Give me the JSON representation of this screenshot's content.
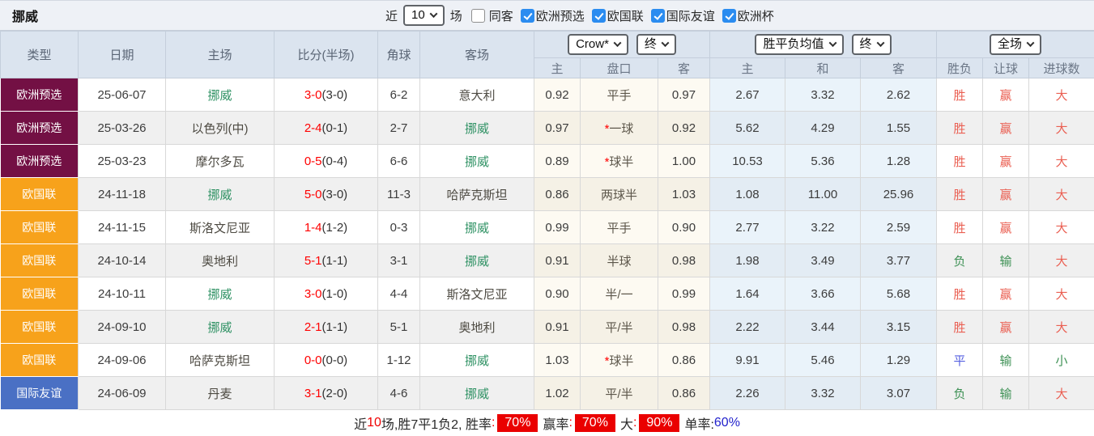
{
  "title": "挪威",
  "topbar": {
    "recent_label": "近",
    "recent_select": "10",
    "matches_label": "场",
    "checkboxes": [
      {
        "label": "同客",
        "checked": false
      },
      {
        "label": "欧洲预选",
        "checked": true
      },
      {
        "label": "欧国联",
        "checked": true
      },
      {
        "label": "国际友谊",
        "checked": true
      },
      {
        "label": "欧洲杯",
        "checked": true
      }
    ]
  },
  "header": {
    "static_cols": [
      "类型",
      "日期",
      "主场",
      "比分(半场)",
      "角球",
      "客场"
    ],
    "selects": {
      "odds_company": "Crow*",
      "odds_stage1": "终",
      "avg_type": "胜平负均值",
      "odds_stage2": "终",
      "scope": "全场"
    },
    "sub_cols": [
      "主",
      "盘口",
      "客",
      "主",
      "和",
      "客",
      "胜负",
      "让球",
      "进球数"
    ]
  },
  "colors": {
    "type_euro_qualifier": "#731044",
    "type_nations_league": "#F7A21B",
    "type_friendly": "#4A70C4",
    "score_red": "#FF0000",
    "team_green": "#2E9163",
    "outcome_red": "#EA5F52",
    "outcome_green": "#3E9155",
    "outcome_blue": "#5660E0",
    "rate_box_red": "#EA0000",
    "single_rate_blue": "#2222CC"
  },
  "rows": [
    {
      "type": "欧洲预选",
      "type_key": "euro_qualifier",
      "date": "25-06-07",
      "home": "挪威",
      "home_green": true,
      "score": "3-0",
      "half": "(3-0)",
      "corner": "6-2",
      "away": "意大利",
      "away_green": false,
      "h": "0.92",
      "star": false,
      "handicap": "平手",
      "a": "0.97",
      "avg_h": "2.67",
      "avg_d": "3.32",
      "avg_a": "2.62",
      "result": "胜",
      "result_c": "red",
      "cover": "赢",
      "cover_c": "red",
      "goals": "大",
      "goals_c": "red"
    },
    {
      "type": "欧洲预选",
      "type_key": "euro_qualifier",
      "date": "25-03-26",
      "home": "以色列(中)",
      "home_green": false,
      "score": "2-4",
      "half": "(0-1)",
      "corner": "2-7",
      "away": "挪威",
      "away_green": true,
      "h": "0.97",
      "star": true,
      "handicap": "一球",
      "a": "0.92",
      "avg_h": "5.62",
      "avg_d": "4.29",
      "avg_a": "1.55",
      "result": "胜",
      "result_c": "red",
      "cover": "赢",
      "cover_c": "red",
      "goals": "大",
      "goals_c": "red"
    },
    {
      "type": "欧洲预选",
      "type_key": "euro_qualifier",
      "date": "25-03-23",
      "home": "摩尔多瓦",
      "home_green": false,
      "score": "0-5",
      "half": "(0-4)",
      "corner": "6-6",
      "away": "挪威",
      "away_green": true,
      "h": "0.89",
      "star": true,
      "handicap": "球半",
      "a": "1.00",
      "avg_h": "10.53",
      "avg_d": "5.36",
      "avg_a": "1.28",
      "result": "胜",
      "result_c": "red",
      "cover": "赢",
      "cover_c": "red",
      "goals": "大",
      "goals_c": "red"
    },
    {
      "type": "欧国联",
      "type_key": "nations_league",
      "date": "24-11-18",
      "home": "挪威",
      "home_green": true,
      "score": "5-0",
      "half": "(3-0)",
      "corner": "11-3",
      "away": "哈萨克斯坦",
      "away_green": false,
      "h": "0.86",
      "star": false,
      "handicap": "两球半",
      "a": "1.03",
      "avg_h": "1.08",
      "avg_d": "11.00",
      "avg_a": "25.96",
      "result": "胜",
      "result_c": "red",
      "cover": "赢",
      "cover_c": "red",
      "goals": "大",
      "goals_c": "red"
    },
    {
      "type": "欧国联",
      "type_key": "nations_league",
      "date": "24-11-15",
      "home": "斯洛文尼亚",
      "home_green": false,
      "score": "1-4",
      "half": "(1-2)",
      "corner": "0-3",
      "away": "挪威",
      "away_green": true,
      "h": "0.99",
      "star": false,
      "handicap": "平手",
      "a": "0.90",
      "avg_h": "2.77",
      "avg_d": "3.22",
      "avg_a": "2.59",
      "result": "胜",
      "result_c": "red",
      "cover": "赢",
      "cover_c": "red",
      "goals": "大",
      "goals_c": "red"
    },
    {
      "type": "欧国联",
      "type_key": "nations_league",
      "date": "24-10-14",
      "home": "奥地利",
      "home_green": false,
      "score": "5-1",
      "half": "(1-1)",
      "corner": "3-1",
      "away": "挪威",
      "away_green": true,
      "h": "0.91",
      "star": false,
      "handicap": "半球",
      "a": "0.98",
      "avg_h": "1.98",
      "avg_d": "3.49",
      "avg_a": "3.77",
      "result": "负",
      "result_c": "green",
      "cover": "输",
      "cover_c": "green",
      "goals": "大",
      "goals_c": "red"
    },
    {
      "type": "欧国联",
      "type_key": "nations_league",
      "date": "24-10-11",
      "home": "挪威",
      "home_green": true,
      "score": "3-0",
      "half": "(1-0)",
      "corner": "4-4",
      "away": "斯洛文尼亚",
      "away_green": false,
      "h": "0.90",
      "star": false,
      "handicap": "半/一",
      "a": "0.99",
      "avg_h": "1.64",
      "avg_d": "3.66",
      "avg_a": "5.68",
      "result": "胜",
      "result_c": "red",
      "cover": "赢",
      "cover_c": "red",
      "goals": "大",
      "goals_c": "red"
    },
    {
      "type": "欧国联",
      "type_key": "nations_league",
      "date": "24-09-10",
      "home": "挪威",
      "home_green": true,
      "score": "2-1",
      "half": "(1-1)",
      "corner": "5-1",
      "away": "奥地利",
      "away_green": false,
      "h": "0.91",
      "star": false,
      "handicap": "平/半",
      "a": "0.98",
      "avg_h": "2.22",
      "avg_d": "3.44",
      "avg_a": "3.15",
      "result": "胜",
      "result_c": "red",
      "cover": "赢",
      "cover_c": "red",
      "goals": "大",
      "goals_c": "red"
    },
    {
      "type": "欧国联",
      "type_key": "nations_league",
      "date": "24-09-06",
      "home": "哈萨克斯坦",
      "home_green": false,
      "score": "0-0",
      "half": "(0-0)",
      "corner": "1-12",
      "away": "挪威",
      "away_green": true,
      "h": "1.03",
      "star": true,
      "handicap": "球半",
      "a": "0.86",
      "avg_h": "9.91",
      "avg_d": "5.46",
      "avg_a": "1.29",
      "result": "平",
      "result_c": "blue",
      "cover": "输",
      "cover_c": "green",
      "goals": "小",
      "goals_c": "green"
    },
    {
      "type": "国际友谊",
      "type_key": "friendly",
      "date": "24-06-09",
      "home": "丹麦",
      "home_green": false,
      "score": "3-1",
      "half": "(2-0)",
      "corner": "4-6",
      "away": "挪威",
      "away_green": true,
      "h": "1.02",
      "star": false,
      "handicap": "平/半",
      "a": "0.86",
      "avg_h": "2.26",
      "avg_d": "3.32",
      "avg_a": "3.07",
      "result": "负",
      "result_c": "green",
      "cover": "输",
      "cover_c": "green",
      "goals": "大",
      "goals_c": "red"
    }
  ],
  "summary": {
    "recent_label": "近",
    "recent_count": "10",
    "stats_text": "场,胜7平1负2, ",
    "win_rate_label": "胜率",
    "win_rate": "70%",
    "cover_rate_label": "赢率",
    "cover_rate": "70%",
    "big_label": "大",
    "big_rate": "90%",
    "single_label": "单率:",
    "single_rate": "60%",
    "colon": ":"
  }
}
